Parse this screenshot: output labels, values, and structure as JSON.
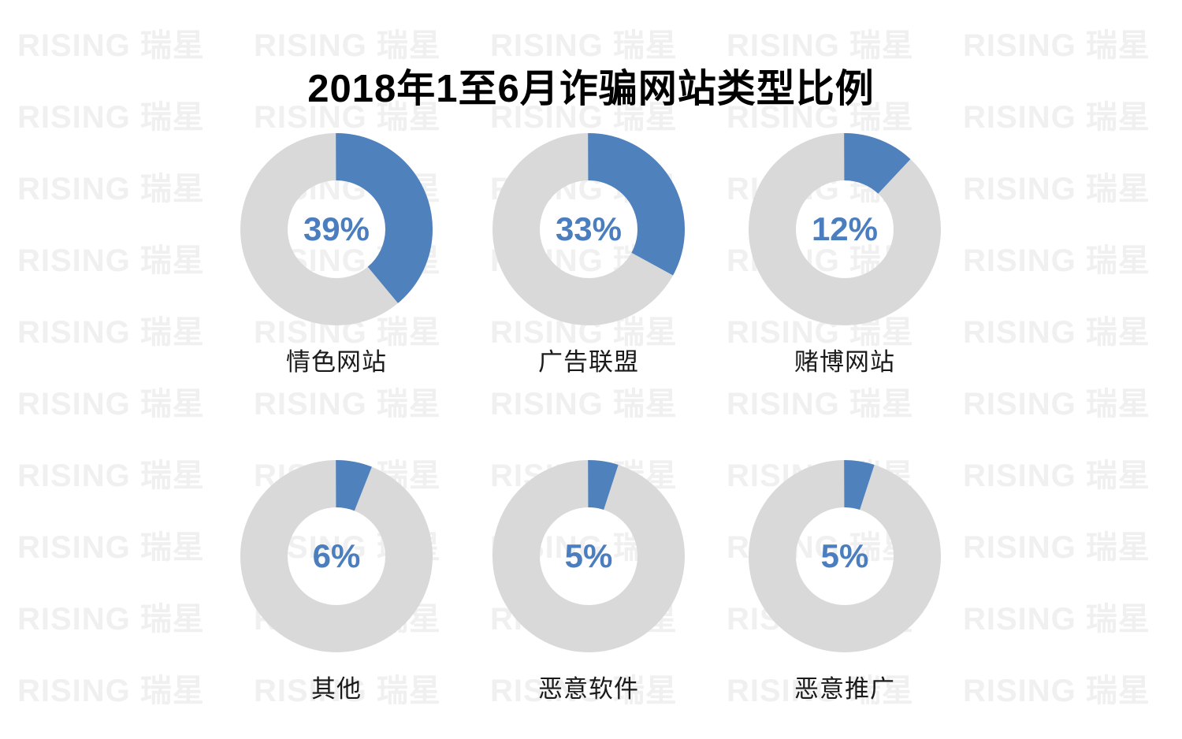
{
  "title": "2018年1至6月诈骗网站类型比例",
  "watermark": {
    "text": "RISING 瑞星",
    "color": "#f0f0f0"
  },
  "chart_data": {
    "type": "pie",
    "subtype": "donut-grid",
    "title": "2018年1至6月诈骗网站类型比例",
    "unit": "%",
    "layout": {
      "rows": 2,
      "cols": 3,
      "start_angle_deg": 0,
      "direction": "clockwise",
      "label_position": "below-each",
      "value_position": "center-of-donut",
      "grid": false,
      "legend": false
    },
    "colors": {
      "slice_blue": "#4F81BD",
      "ring_gray": "#D9D9D9",
      "value_text_blue": "#4A7EBE",
      "label_text": "#1a1a1a",
      "title_text": "#000000"
    },
    "donuts": [
      {
        "label": "情色网站",
        "value": 39
      },
      {
        "label": "广告联盟",
        "value": 33
      },
      {
        "label": "赌博网站",
        "value": 12
      },
      {
        "label": "其他",
        "value": 6
      },
      {
        "label": "恶意软件",
        "value": 5
      },
      {
        "label": "恶意推广",
        "value": 5
      }
    ]
  }
}
